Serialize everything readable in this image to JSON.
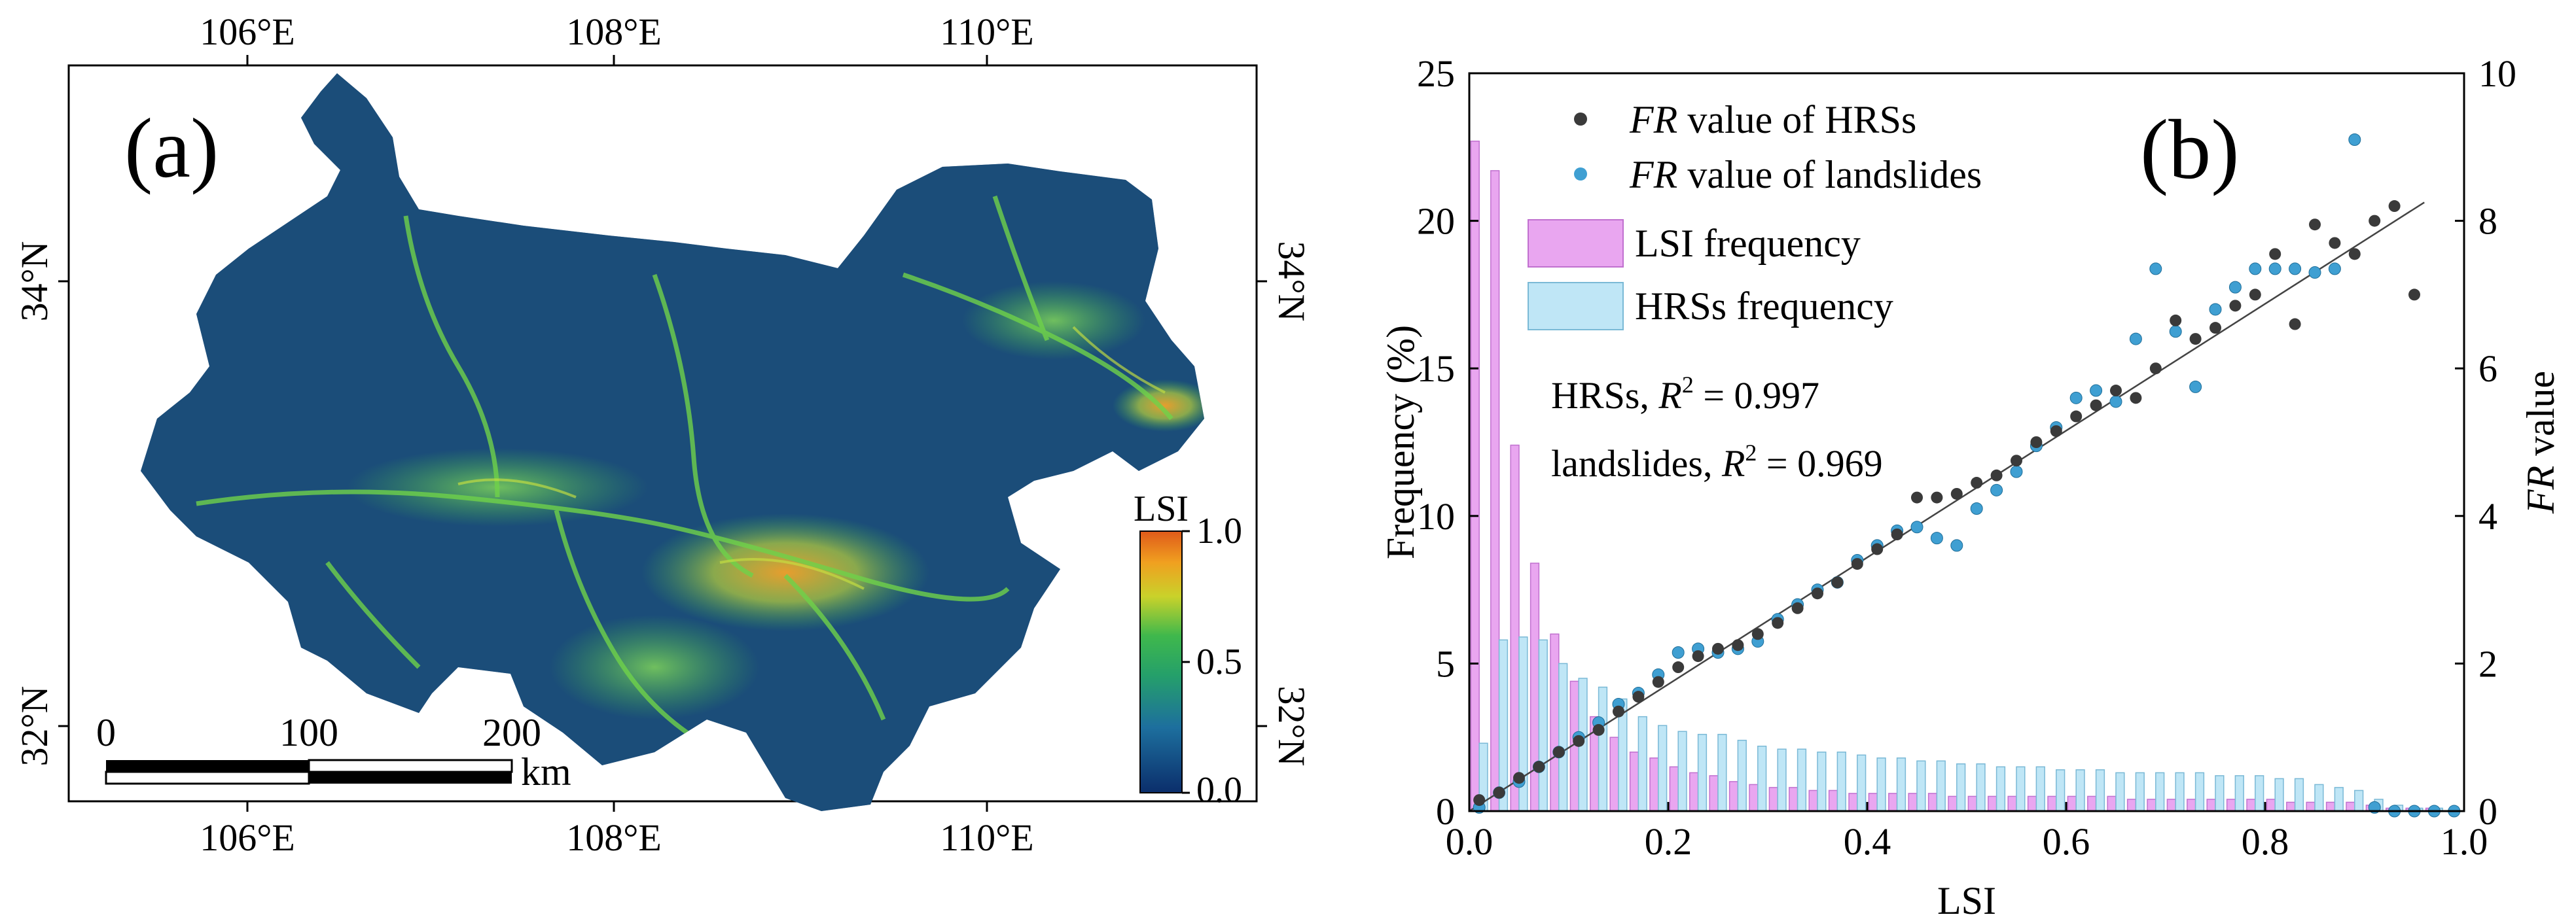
{
  "colors": {
    "lsi_low": "#0b2e6b",
    "lsi_mid": "#3fb84c",
    "lsi_high": "#e05a1a",
    "hrs_dot": "#3a3a3a",
    "landslide_dot": "#3f9fd2",
    "lsi_bar": "#e9a6f0",
    "hrs_bar": "#bfe6f6",
    "fit_line": "#444444"
  },
  "panel_a": {
    "label": "(a)",
    "lon_ticks": [
      "106°E",
      "108°E",
      "110°E"
    ],
    "lat_ticks": [
      "34°N",
      "32°N"
    ],
    "legend": {
      "title": "LSI",
      "ticks": [
        "1.0",
        "0.5",
        "0.0"
      ],
      "icon": "colorbar"
    },
    "scalebar": {
      "ticks": [
        "0",
        "100",
        "200"
      ],
      "unit": "km"
    }
  },
  "chart_data": {
    "type": "bar",
    "panel_label": "(b)",
    "xlabel": "LSI",
    "ylabel": "Frequency (%)",
    "ylabel_right_italic": "FR",
    "ylabel_right_rest": " value",
    "xlim": [
      0,
      1
    ],
    "ylim": [
      0,
      25
    ],
    "y2lim": [
      0,
      10
    ],
    "x_ticks": [
      0.0,
      0.2,
      0.4,
      0.6,
      0.8,
      1.0
    ],
    "x_tick_labels": [
      "0.0",
      "0.2",
      "0.4",
      "0.6",
      "0.8",
      "1.0"
    ],
    "y_ticks": [
      0,
      5,
      10,
      15,
      20,
      25
    ],
    "y_tick_labels": [
      "0",
      "5",
      "10",
      "15",
      "20",
      "25"
    ],
    "y2_ticks": [
      0,
      2,
      4,
      6,
      8,
      10
    ],
    "y2_tick_labels": [
      "0",
      "2",
      "4",
      "6",
      "8",
      "10"
    ],
    "legend": {
      "fr_prefix": "FR",
      "hrs_scatter": " value of HRSs",
      "landslide_scatter": " value of landslides",
      "lsi_bar": "LSI frequency",
      "hrs_bar": "HRSs frequency"
    },
    "annotations": {
      "hrs_prefix": "HRSs, ",
      "landslides_prefix": "landslides, ",
      "r_symbol": "R",
      "r_power": "2",
      "hrs_value": " = 0.997",
      "landslides_value": " = 0.969"
    },
    "bars": {
      "bin_width": 0.02,
      "x": [
        0.01,
        0.03,
        0.05,
        0.07,
        0.09,
        0.11,
        0.13,
        0.15,
        0.17,
        0.19,
        0.21,
        0.23,
        0.25,
        0.27,
        0.29,
        0.31,
        0.33,
        0.35,
        0.37,
        0.39,
        0.41,
        0.43,
        0.45,
        0.47,
        0.49,
        0.51,
        0.53,
        0.55,
        0.57,
        0.59,
        0.61,
        0.63,
        0.65,
        0.67,
        0.69,
        0.71,
        0.73,
        0.75,
        0.77,
        0.79,
        0.81,
        0.83,
        0.85,
        0.87,
        0.89,
        0.91,
        0.93,
        0.95,
        0.97,
        0.99
      ],
      "series": [
        {
          "name": "LSI frequency",
          "values": [
            22.7,
            21.7,
            12.4,
            8.4,
            6.0,
            4.4,
            3.2,
            2.5,
            2.0,
            1.8,
            1.5,
            1.3,
            1.2,
            1.0,
            0.9,
            0.8,
            0.8,
            0.7,
            0.7,
            0.6,
            0.6,
            0.6,
            0.6,
            0.6,
            0.5,
            0.5,
            0.5,
            0.5,
            0.5,
            0.5,
            0.5,
            0.5,
            0.5,
            0.4,
            0.4,
            0.4,
            0.4,
            0.4,
            0.4,
            0.4,
            0.4,
            0.3,
            0.3,
            0.3,
            0.3,
            0.2,
            0.1,
            0.1,
            0.1,
            0.0
          ]
        },
        {
          "name": "HRSs frequency",
          "values": [
            2.3,
            5.8,
            5.9,
            5.8,
            5.0,
            4.5,
            4.2,
            3.8,
            3.2,
            2.9,
            2.7,
            2.6,
            2.6,
            2.4,
            2.2,
            2.1,
            2.1,
            2.0,
            2.0,
            1.9,
            1.8,
            1.8,
            1.7,
            1.7,
            1.6,
            1.6,
            1.5,
            1.5,
            1.5,
            1.4,
            1.4,
            1.4,
            1.3,
            1.3,
            1.3,
            1.3,
            1.3,
            1.2,
            1.2,
            1.2,
            1.1,
            1.1,
            0.9,
            0.8,
            0.7,
            0.4,
            0.2,
            0.1,
            0.1,
            0.0
          ]
        }
      ]
    },
    "scatter": [
      {
        "name": "FR value of HRSs",
        "x": [
          0.01,
          0.03,
          0.05,
          0.07,
          0.09,
          0.11,
          0.13,
          0.15,
          0.17,
          0.19,
          0.21,
          0.23,
          0.25,
          0.27,
          0.29,
          0.31,
          0.33,
          0.35,
          0.37,
          0.39,
          0.41,
          0.43,
          0.45,
          0.47,
          0.49,
          0.51,
          0.53,
          0.55,
          0.57,
          0.59,
          0.61,
          0.63,
          0.65,
          0.67,
          0.69,
          0.71,
          0.73,
          0.75,
          0.77,
          0.79,
          0.81,
          0.83,
          0.85,
          0.87,
          0.89,
          0.91,
          0.93,
          0.95
        ],
        "y": [
          0.15,
          0.25,
          0.45,
          0.6,
          0.8,
          0.95,
          1.1,
          1.35,
          1.55,
          1.75,
          1.95,
          2.1,
          2.2,
          2.25,
          2.4,
          2.55,
          2.75,
          2.95,
          3.1,
          3.35,
          3.55,
          3.75,
          4.25,
          4.25,
          4.3,
          4.45,
          4.55,
          4.75,
          5.0,
          5.15,
          5.35,
          5.5,
          5.7,
          5.6,
          6.0,
          6.65,
          6.4,
          6.55,
          6.85,
          7.0,
          7.55,
          6.6,
          7.95,
          7.7,
          7.55,
          8.0,
          8.2,
          7.0
        ]
      },
      {
        "name": "FR value of landslides",
        "x": [
          0.01,
          0.03,
          0.05,
          0.07,
          0.09,
          0.11,
          0.13,
          0.15,
          0.17,
          0.19,
          0.21,
          0.23,
          0.25,
          0.27,
          0.29,
          0.31,
          0.33,
          0.35,
          0.37,
          0.39,
          0.41,
          0.43,
          0.45,
          0.47,
          0.49,
          0.51,
          0.53,
          0.55,
          0.57,
          0.59,
          0.61,
          0.63,
          0.65,
          0.67,
          0.69,
          0.71,
          0.73,
          0.75,
          0.77,
          0.79,
          0.81,
          0.83,
          0.85,
          0.87,
          0.89,
          0.91,
          0.93,
          0.95,
          0.97,
          0.99
        ],
        "y": [
          0.05,
          0.25,
          0.4,
          0.6,
          0.8,
          1.0,
          1.2,
          1.45,
          1.6,
          1.85,
          2.15,
          2.2,
          2.15,
          2.2,
          2.3,
          2.6,
          2.8,
          3.0,
          3.1,
          3.4,
          3.6,
          3.8,
          3.85,
          3.7,
          3.6,
          4.1,
          4.35,
          4.6,
          4.95,
          5.2,
          5.6,
          5.7,
          5.55,
          6.4,
          7.35,
          6.5,
          5.75,
          6.8,
          7.1,
          7.35,
          7.35,
          7.35,
          7.3,
          7.35,
          9.1,
          0.05,
          0.0,
          0.0,
          0.0,
          0.0
        ]
      }
    ],
    "fit_line": {
      "x": [
        0.0,
        0.96
      ],
      "y": [
        0.0,
        8.25
      ]
    }
  }
}
